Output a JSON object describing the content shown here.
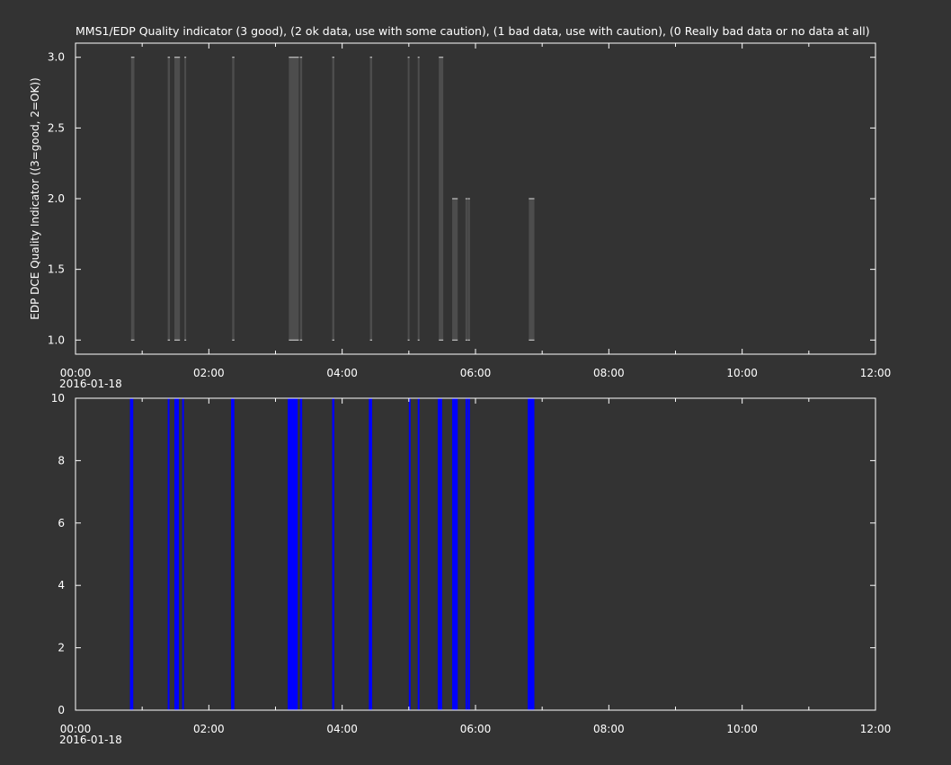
{
  "title": "MMS1/EDP  Quality indicator (3 good), (2 ok data, use with some caution), (1 bad data, use with caution), (0 Really bad data or no data at all)",
  "colors": {
    "background": "#333333",
    "axes": "#ffffff",
    "top_bars": "#4d4d4d",
    "bottom_bars": "#0000ff"
  },
  "chart_data": [
    {
      "type": "bar",
      "panel": "top",
      "ylabel": "EDP DCE Quality Indicator ((3=good, 2=OK))",
      "xlim": [
        "00:00",
        "12:00"
      ],
      "ylim": [
        0.9,
        3.1
      ],
      "yticks": [
        "1.0",
        "1.5",
        "2.0",
        "2.5",
        "3.0"
      ],
      "xticks": [
        "00:00",
        "02:00",
        "04:00",
        "06:00",
        "08:00",
        "10:00",
        "12:00"
      ],
      "x_date_label": "2016-01-18",
      "grid": false,
      "baseline": 1.0,
      "series": [
        {
          "bars": [
            {
              "start": "00:50",
              "end": "00:53",
              "value": 3.0
            },
            {
              "start": "01:23",
              "end": "01:25",
              "value": 3.0
            },
            {
              "start": "01:29",
              "end": "01:34",
              "value": 3.0
            },
            {
              "start": "01:38",
              "end": "01:39",
              "value": 3.0
            },
            {
              "start": "02:21",
              "end": "02:23",
              "value": 3.0
            },
            {
              "start": "03:12",
              "end": "03:21",
              "value": 3.0
            },
            {
              "start": "03:22",
              "end": "03:24",
              "value": 3.0
            },
            {
              "start": "03:51",
              "end": "03:53",
              "value": 3.0
            },
            {
              "start": "04:25",
              "end": "04:27",
              "value": 3.0
            },
            {
              "start": "04:59",
              "end": "05:00",
              "value": 3.0
            },
            {
              "start": "05:08",
              "end": "05:09",
              "value": 3.0
            },
            {
              "start": "05:27",
              "end": "05:31",
              "value": 3.0
            },
            {
              "start": "05:39",
              "end": "05:44",
              "value": 2.0
            },
            {
              "start": "05:51",
              "end": "05:52",
              "value": 2.0
            },
            {
              "start": "05:53",
              "end": "05:55",
              "value": 2.0
            },
            {
              "start": "06:48",
              "end": "06:53",
              "value": 2.0
            }
          ]
        }
      ]
    },
    {
      "type": "bar",
      "panel": "bottom",
      "ylabel": "",
      "xlim": [
        "00:00",
        "12:00"
      ],
      "ylim": [
        0,
        10
      ],
      "yticks": [
        "0",
        "2",
        "4",
        "6",
        "8",
        "10"
      ],
      "xticks": [
        "00:00",
        "02:00",
        "04:00",
        "06:00",
        "08:00",
        "10:00",
        "12:00"
      ],
      "x_date_label": "2016-01-18",
      "grid": false,
      "series": [
        {
          "bars": [
            {
              "start": "00:49",
              "end": "00:52",
              "value": 10
            },
            {
              "start": "01:23",
              "end": "01:24",
              "value": 10
            },
            {
              "start": "01:29",
              "end": "01:33",
              "value": 10
            },
            {
              "start": "01:36",
              "end": "01:37",
              "value": 10
            },
            {
              "start": "02:20",
              "end": "02:23",
              "value": 10
            },
            {
              "start": "03:11",
              "end": "03:15",
              "value": 10
            },
            {
              "start": "03:15",
              "end": "03:20",
              "value": 10
            },
            {
              "start": "03:22",
              "end": "03:24",
              "value": 10
            },
            {
              "start": "03:51",
              "end": "03:53",
              "value": 10
            },
            {
              "start": "04:24",
              "end": "04:27",
              "value": 10
            },
            {
              "start": "05:00",
              "end": "05:01",
              "value": 10
            },
            {
              "start": "05:08",
              "end": "05:09",
              "value": 10
            },
            {
              "start": "05:26",
              "end": "05:30",
              "value": 10
            },
            {
              "start": "05:39",
              "end": "05:44",
              "value": 10
            },
            {
              "start": "05:51",
              "end": "05:52",
              "value": 10
            },
            {
              "start": "05:53",
              "end": "05:55",
              "value": 10
            },
            {
              "start": "06:47",
              "end": "06:53",
              "value": 10
            }
          ]
        }
      ]
    }
  ]
}
